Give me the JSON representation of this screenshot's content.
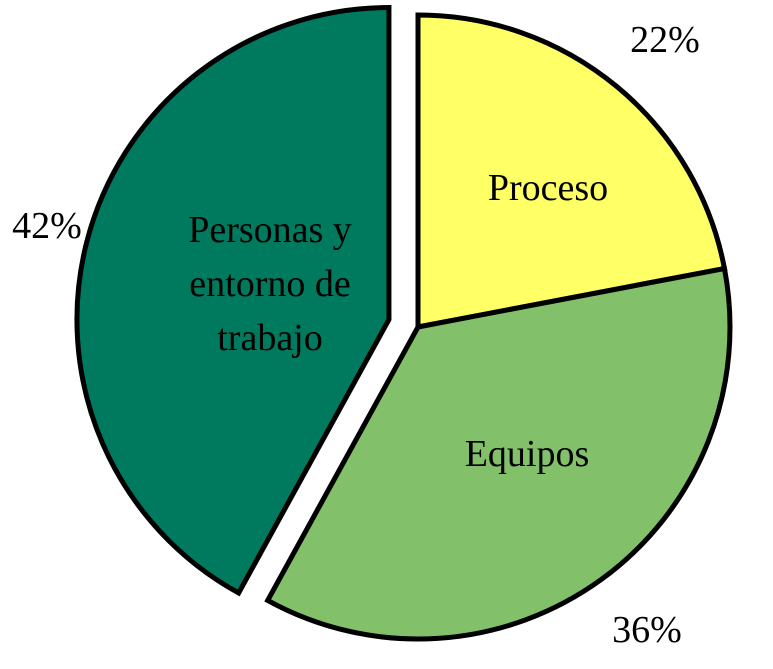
{
  "chart_data": {
    "type": "pie",
    "title": "",
    "slices": [
      {
        "label": "Proceso",
        "label_lines": [
          "Proceso"
        ],
        "value": 22,
        "value_label": "22%",
        "color": "#FFFF66",
        "exploded": false
      },
      {
        "label": "Equipos",
        "label_lines": [
          "Equipos"
        ],
        "value": 36,
        "value_label": "36%",
        "color": "#82C06A",
        "exploded": false
      },
      {
        "label": "Personas y entorno de trabajo",
        "label_lines": [
          "Personas y",
          "entorno de",
          "trabajo"
        ],
        "value": 42,
        "value_label": "42%",
        "color": "#007A5E",
        "exploded": true
      }
    ],
    "start_angle_deg": 0,
    "direction": "clockwise",
    "border_color": "#000000",
    "legend": "none"
  }
}
